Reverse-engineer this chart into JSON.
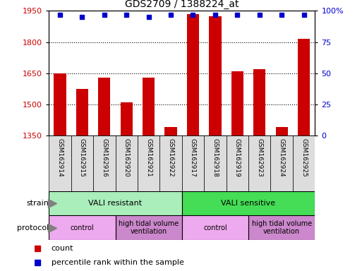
{
  "title": "GDS2709 / 1388224_at",
  "samples": [
    "GSM162914",
    "GSM162915",
    "GSM162916",
    "GSM162920",
    "GSM162921",
    "GSM162922",
    "GSM162917",
    "GSM162918",
    "GSM162919",
    "GSM162923",
    "GSM162924",
    "GSM162925"
  ],
  "counts": [
    1650,
    1575,
    1630,
    1510,
    1630,
    1390,
    1935,
    1925,
    1660,
    1670,
    1390,
    1815
  ],
  "percentile_ranks": [
    97,
    95,
    97,
    97,
    95,
    97,
    97,
    97,
    97,
    97,
    97,
    97
  ],
  "ylim_left": [
    1350,
    1950
  ],
  "ylim_right": [
    0,
    100
  ],
  "yticks_left": [
    1350,
    1500,
    1650,
    1800,
    1950
  ],
  "yticks_right": [
    0,
    25,
    50,
    75,
    100
  ],
  "bar_color": "#cc0000",
  "dot_color": "#0000cc",
  "strain_groups": [
    {
      "label": "VALI resistant",
      "start": 0,
      "end": 6,
      "color": "#aaeebb"
    },
    {
      "label": "VALI sensitive",
      "start": 6,
      "end": 12,
      "color": "#44dd55"
    }
  ],
  "protocol_groups": [
    {
      "label": "control",
      "start": 0,
      "end": 3,
      "color": "#eeaaee"
    },
    {
      "label": "high tidal volume\nventilation",
      "start": 3,
      "end": 6,
      "color": "#cc88cc"
    },
    {
      "label": "control",
      "start": 6,
      "end": 9,
      "color": "#eeaaee"
    },
    {
      "label": "high tidal volume\nventilation",
      "start": 9,
      "end": 12,
      "color": "#cc88cc"
    }
  ],
  "legend_count_color": "#cc0000",
  "legend_dot_color": "#0000cc",
  "tick_label_color_left": "#cc0000",
  "tick_label_color_right": "#0000cc",
  "label_cell_color": "#dddddd",
  "bar_width": 0.55
}
